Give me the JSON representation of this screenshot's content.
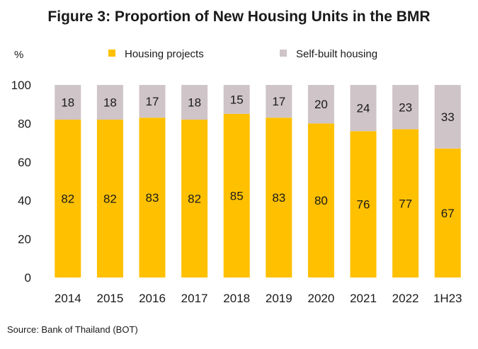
{
  "chart_data": {
    "type": "bar",
    "stacked": true,
    "title": "Figure 3: Proportion of New Housing Units in the BMR",
    "ylabel": "%",
    "xlabel": "",
    "ylim": [
      0,
      100
    ],
    "yticks": [
      0,
      20,
      40,
      60,
      80,
      100
    ],
    "categories": [
      "2014",
      "2015",
      "2016",
      "2017",
      "2018",
      "2019",
      "2020",
      "2021",
      "2022",
      "1H23"
    ],
    "series": [
      {
        "name": "Housing projects",
        "color": "#FFC000",
        "values": [
          82,
          82,
          83,
          82,
          85,
          83,
          80,
          76,
          77,
          67
        ]
      },
      {
        "name": "Self-built housing",
        "color": "#CFC4C8",
        "values": [
          18,
          18,
          17,
          18,
          15,
          17,
          20,
          24,
          23,
          33
        ]
      }
    ],
    "legend_position": "top",
    "grid": false,
    "source": "Source: Bank of Thailand (BOT)"
  }
}
